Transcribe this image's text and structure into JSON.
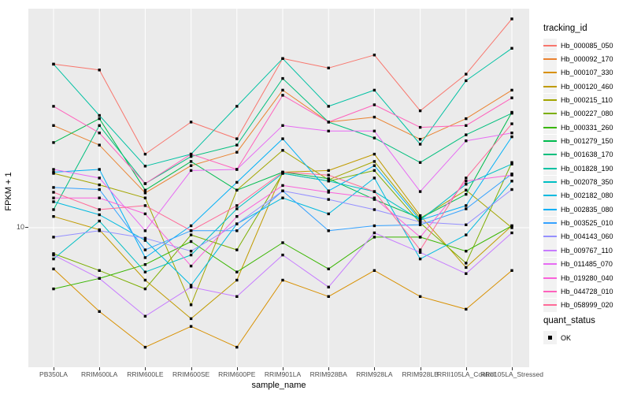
{
  "figure": {
    "y_axis": {
      "title": "FPKM + 1",
      "tick_labels": [
        "10"
      ]
    },
    "x_axis": {
      "title": "sample_name"
    },
    "legend": {
      "tracking_title": "tracking_id",
      "quant_title": "quant_status",
      "quant_items": [
        {
          "label": "OK"
        }
      ]
    },
    "colors": {
      "panel_bg": "#EBEBEB",
      "grid": "#FFFFFF",
      "legend_key_bg": "#F2F2F2",
      "axis_text": "#4D4D4D",
      "point": "#000000"
    }
  },
  "chart_data": {
    "type": "line",
    "title": "",
    "xlabel": "sample_name",
    "ylabel": "FPKM + 1",
    "y_scale": "log10",
    "y_breaks": [
      10
    ],
    "ylim_approx": [
      2.5,
      90
    ],
    "grid": "major",
    "legend_position": "right",
    "point_shape": "filled-black-square",
    "quant_status_legend": [
      "OK"
    ],
    "categories": [
      "PB350LA",
      "RRIM600LA",
      "RRIM600LE",
      "RRIM600SE",
      "RRIM600PE",
      "RRIM901LA",
      "RRIM928BA",
      "RRIM928LA",
      "RRIM928LB",
      "RRII105LA_Control",
      "RRII105LA_Stressed"
    ],
    "series": [
      {
        "name": "Hb_000085_050",
        "color": "#F8766D",
        "values": [
          52,
          49,
          21,
          29,
          24.5,
          55,
          50,
          57,
          32.5,
          47,
          82
        ]
      },
      {
        "name": "Hb_000092_170",
        "color": "#EA8331",
        "values": [
          28,
          23,
          14.2,
          18.7,
          21.4,
          40,
          29,
          30.5,
          24.4,
          30,
          40
        ]
      },
      {
        "name": "Hb_000107_330",
        "color": "#D89000",
        "values": [
          6.6,
          4.3,
          3.0,
          3.7,
          3.0,
          5.9,
          5.0,
          6.5,
          5.0,
          4.4,
          6.5
        ]
      },
      {
        "name": "Hb_000120_460",
        "color": "#C09B00",
        "values": [
          11.2,
          9.8,
          5.9,
          4.0,
          5.9,
          17.5,
          17.8,
          21.0,
          11.3,
          6.7,
          10.2
        ]
      },
      {
        "name": "Hb_000215_110",
        "color": "#A3A500",
        "values": [
          17.3,
          15.4,
          13.5,
          4.6,
          14.6,
          21.8,
          16.2,
          19.5,
          11.0,
          14.6,
          10.0
        ]
      },
      {
        "name": "Hb_000227_080",
        "color": "#7CAE00",
        "values": [
          7.7,
          6.5,
          5.4,
          9.3,
          8.0,
          17.3,
          16.0,
          17.8,
          10.5,
          7.0,
          19.3
        ]
      },
      {
        "name": "Hb_000331_260",
        "color": "#39B600",
        "values": [
          5.4,
          6.0,
          6.9,
          8.7,
          6.4,
          8.6,
          6.6,
          9.1,
          9.1,
          7.9,
          10.2
        ]
      },
      {
        "name": "Hb_001279_150",
        "color": "#00BB4E",
        "values": [
          23.6,
          30,
          14.6,
          19.5,
          14.6,
          17.5,
          16.4,
          13.3,
          11.0,
          14.0,
          32
        ]
      },
      {
        "name": "Hb_001638_170",
        "color": "#00BF7D",
        "values": [
          12,
          28,
          15.6,
          20.5,
          23,
          45,
          29,
          24.7,
          19.3,
          25.5,
          31.7
        ]
      },
      {
        "name": "Hb_001828_190",
        "color": "#00C1A3",
        "values": [
          52,
          31,
          18.6,
          21,
          34,
          55,
          34,
          40,
          23.2,
          44,
          61
        ]
      },
      {
        "name": "Hb_002078_350",
        "color": "#00BFC4",
        "values": [
          7.3,
          10.7,
          6.4,
          7.6,
          12.1,
          17.3,
          16.0,
          14.4,
          10.8,
          15.5,
          19.0
        ]
      },
      {
        "name": "Hb_002182_080",
        "color": "#00BAE0",
        "values": [
          13,
          11.4,
          8.8,
          5.6,
          10.4,
          13.5,
          11.5,
          16.5,
          7.3,
          9.3,
          16.0
        ]
      },
      {
        "name": "Hb_002835_080",
        "color": "#00B0F6",
        "values": [
          17.5,
          18,
          7.4,
          10.2,
          15.8,
          24.5,
          14.5,
          18.7,
          10.8,
          12.5,
          25.0
        ]
      },
      {
        "name": "Hb_003525_010",
        "color": "#35A2FF",
        "values": [
          15,
          14.7,
          8.0,
          9.7,
          9.7,
          14.5,
          9.7,
          10.2,
          10.3,
          12.1,
          17.2
        ]
      },
      {
        "name": "Hb_004143_060",
        "color": "#9590FF",
        "values": [
          9.1,
          9.7,
          9.0,
          7.9,
          10.4,
          14.5,
          13.3,
          12.0,
          10.6,
          10.3,
          14.7
        ]
      },
      {
        "name": "Hb_009767_110",
        "color": "#C77CFF",
        "values": [
          7.6,
          6.0,
          4.1,
          5.5,
          5.0,
          7.6,
          5.5,
          9.5,
          7.8,
          6.3,
          9.5
        ]
      },
      {
        "name": "Hb_011485_070",
        "color": "#E76BF3",
        "values": [
          18,
          16.5,
          9.7,
          17.8,
          18,
          28,
          26.5,
          26.5,
          14.4,
          24,
          26
        ]
      },
      {
        "name": "Hb_019280_040",
        "color": "#FA62DB",
        "values": [
          13.5,
          13.5,
          11.5,
          6.8,
          11.2,
          15.3,
          14.3,
          13.5,
          9.1,
          16,
          17
        ]
      },
      {
        "name": "Hb_044728_010",
        "color": "#FF62BC",
        "values": [
          34,
          26,
          15.6,
          21,
          18,
          38,
          29,
          34.5,
          27.5,
          28,
          37
        ]
      },
      {
        "name": "Hb_058999_020",
        "color": "#FF6A98",
        "values": [
          14.3,
          12,
          12.5,
          9.7,
          12.5,
          17.5,
          17,
          14.4,
          8.0,
          16.5,
          28.5
        ]
      }
    ]
  }
}
